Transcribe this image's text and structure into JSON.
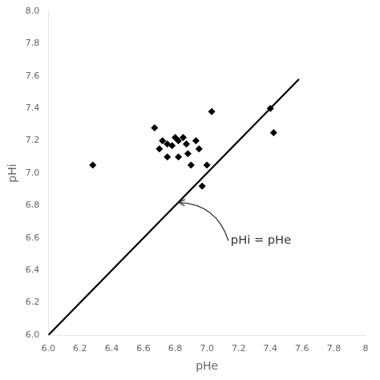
{
  "chart_data": {
    "type": "scatter",
    "xlabel": "pHe",
    "ylabel": "pHi",
    "series": [
      {
        "type": "scatter",
        "color": "black",
        "marker": "diamond",
        "x": [
          6.28,
          6.67,
          6.7,
          6.72,
          6.75,
          6.78,
          6.8,
          6.82,
          6.82,
          6.85,
          6.87,
          6.88,
          6.9,
          6.93,
          6.95,
          6.97,
          7.0,
          7.03,
          7.42,
          7.4,
          6.75
        ],
        "values": [
          7.05,
          7.28,
          7.15,
          7.2,
          7.18,
          7.17,
          7.22,
          7.2,
          7.1,
          7.22,
          7.18,
          7.12,
          7.05,
          7.2,
          7.15,
          6.92,
          7.05,
          7.38,
          7.25,
          7.4,
          7.1
        ]
      },
      {
        "type": "line",
        "color": "black",
        "line_style": "solid",
        "x": [
          6.0,
          7.58
        ],
        "values": [
          6.0,
          7.58
        ]
      }
    ],
    "annotations": [
      {
        "text": "pHi = pHe",
        "xy": [
          6.82,
          6.82
        ],
        "xytext": [
          7.15,
          6.62
        ]
      }
    ],
    "xlim": [
      6.0,
      8.0
    ],
    "ylim": [
      6.0,
      8.0
    ],
    "xticks": [
      {
        "value": 6.0,
        "label": "6.0"
      },
      6.2,
      6.4,
      6.6,
      6.8,
      {
        "value": 7.0,
        "label": "7.0"
      },
      7.2,
      7.4,
      7.6,
      7.8,
      8
    ],
    "yticks": [
      {
        "value": 6.0,
        "label": "6.0"
      },
      6.2,
      6.4,
      6.6,
      6.8,
      {
        "value": 7.0,
        "label": "7.0"
      },
      7.2,
      7.4,
      7.6,
      7.8,
      {
        "value": 8.0,
        "label": "8.0"
      }
    ],
    "grid": false
  }
}
